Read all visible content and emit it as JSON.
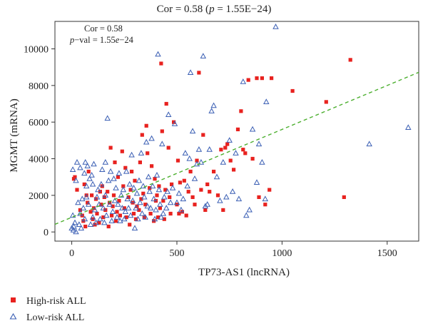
{
  "chart_data": {
    "type": "scatter",
    "title": "Cor = 0.58 (p = 1.55E−24)",
    "title_parts": {
      "prefix": "Cor = 0.58 (",
      "p": "p",
      "suffix": " = 1.55E−24)"
    },
    "annotation": {
      "cor": "Cor = 0.58",
      "pval_prefix": "p",
      "pval_mid": "−val = 1.55",
      "pval_e": "e",
      "pval_suffix": "−24"
    },
    "xlabel": "TP73-AS1 (lncRNA)",
    "ylabel": "MGMT (mRNA)",
    "xlim": [
      -80,
      1650
    ],
    "ylim": [
      -500,
      11500
    ],
    "xticks": [
      0,
      500,
      1000,
      1500
    ],
    "yticks": [
      0,
      2000,
      4000,
      6000,
      8000,
      10000
    ],
    "grid": false,
    "legend_position": "bottom-left",
    "trendline": {
      "style": "dashed",
      "color": "#4caf2f",
      "intercept": 800,
      "slope": 4.8
    },
    "series": [
      {
        "name": "High-risk ALL",
        "marker": "square",
        "color": "#e8221f",
        "points": [
          [
            10,
            2900
          ],
          [
            15,
            3000
          ],
          [
            25,
            2300
          ],
          [
            40,
            1200
          ],
          [
            50,
            900
          ],
          [
            55,
            600
          ],
          [
            60,
            2600
          ],
          [
            65,
            300
          ],
          [
            70,
            2000
          ],
          [
            75,
            1600
          ],
          [
            80,
            3300
          ],
          [
            90,
            1100
          ],
          [
            95,
            2000
          ],
          [
            100,
            700
          ],
          [
            105,
            1300
          ],
          [
            110,
            400
          ],
          [
            115,
            1800
          ],
          [
            120,
            1000
          ],
          [
            130,
            500
          ],
          [
            135,
            2200
          ],
          [
            140,
            1500
          ],
          [
            145,
            2500
          ],
          [
            150,
            800
          ],
          [
            155,
            1900
          ],
          [
            160,
            1200
          ],
          [
            170,
            2200
          ],
          [
            175,
            300
          ],
          [
            180,
            1600
          ],
          [
            185,
            4600
          ],
          [
            190,
            900
          ],
          [
            195,
            1400
          ],
          [
            200,
            2000
          ],
          [
            205,
            3800
          ],
          [
            210,
            600
          ],
          [
            215,
            1100
          ],
          [
            220,
            3000
          ],
          [
            225,
            1700
          ],
          [
            230,
            900
          ],
          [
            240,
            4400
          ],
          [
            245,
            2500
          ],
          [
            250,
            1300
          ],
          [
            255,
            3500
          ],
          [
            260,
            800
          ],
          [
            270,
            1900
          ],
          [
            275,
            400
          ],
          [
            280,
            2300
          ],
          [
            285,
            3300
          ],
          [
            290,
            1600
          ],
          [
            295,
            1000
          ],
          [
            300,
            2800
          ],
          [
            305,
            700
          ],
          [
            310,
            1400
          ],
          [
            320,
            1200
          ],
          [
            325,
            3800
          ],
          [
            330,
            1800
          ],
          [
            335,
            5300
          ],
          [
            340,
            2100
          ],
          [
            345,
            800
          ],
          [
            350,
            1500
          ],
          [
            355,
            5800
          ],
          [
            360,
            4300
          ],
          [
            370,
            2400
          ],
          [
            375,
            1000
          ],
          [
            380,
            3600
          ],
          [
            390,
            600
          ],
          [
            395,
            2900
          ],
          [
            400,
            1700
          ],
          [
            405,
            2000
          ],
          [
            410,
            800
          ],
          [
            415,
            2500
          ],
          [
            420,
            1300
          ],
          [
            425,
            9200
          ],
          [
            430,
            5500
          ],
          [
            435,
            1700
          ],
          [
            440,
            700
          ],
          [
            445,
            2300
          ],
          [
            450,
            7000
          ],
          [
            460,
            4600
          ],
          [
            465,
            1900
          ],
          [
            470,
            1000
          ],
          [
            475,
            2600
          ],
          [
            485,
            6000
          ],
          [
            500,
            1500
          ],
          [
            505,
            3900
          ],
          [
            510,
            1000
          ],
          [
            515,
            2700
          ],
          [
            525,
            1100
          ],
          [
            535,
            2800
          ],
          [
            545,
            900
          ],
          [
            555,
            2200
          ],
          [
            565,
            3300
          ],
          [
            575,
            1900
          ],
          [
            585,
            1500
          ],
          [
            595,
            3900
          ],
          [
            605,
            8700
          ],
          [
            615,
            2300
          ],
          [
            625,
            5300
          ],
          [
            635,
            1200
          ],
          [
            645,
            2600
          ],
          [
            655,
            2200
          ],
          [
            675,
            3300
          ],
          [
            695,
            2000
          ],
          [
            710,
            4500
          ],
          [
            720,
            1200
          ],
          [
            730,
            4600
          ],
          [
            740,
            4800
          ],
          [
            755,
            3900
          ],
          [
            770,
            3400
          ],
          [
            790,
            5600
          ],
          [
            805,
            6600
          ],
          [
            815,
            4500
          ],
          [
            825,
            4300
          ],
          [
            840,
            8300
          ],
          [
            860,
            4000
          ],
          [
            880,
            8400
          ],
          [
            890,
            1900
          ],
          [
            905,
            8400
          ],
          [
            920,
            1500
          ],
          [
            940,
            2300
          ],
          [
            950,
            8400
          ],
          [
            1050,
            7700
          ],
          [
            1210,
            7100
          ],
          [
            1295,
            1900
          ],
          [
            1325,
            9400
          ]
        ]
      },
      {
        "name": "Low-risk ALL",
        "marker": "triangle",
        "color": "#3b5fb4",
        "points": [
          [
            0,
            200
          ],
          [
            5,
            900
          ],
          [
            5,
            3400
          ],
          [
            8,
            100
          ],
          [
            10,
            300
          ],
          [
            15,
            500
          ],
          [
            20,
            2800
          ],
          [
            20,
            0
          ],
          [
            25,
            3800
          ],
          [
            30,
            1600
          ],
          [
            35,
            400
          ],
          [
            40,
            3500
          ],
          [
            40,
            1000
          ],
          [
            45,
            200
          ],
          [
            50,
            1800
          ],
          [
            55,
            1300
          ],
          [
            60,
            3200
          ],
          [
            62,
            700
          ],
          [
            65,
            3800
          ],
          [
            70,
            1900
          ],
          [
            70,
            2500
          ],
          [
            75,
            3600
          ],
          [
            80,
            1500
          ],
          [
            85,
            2900
          ],
          [
            90,
            400
          ],
          [
            95,
            3100
          ],
          [
            100,
            800
          ],
          [
            100,
            2600
          ],
          [
            105,
            3700
          ],
          [
            110,
            1200
          ],
          [
            115,
            500
          ],
          [
            120,
            1900
          ],
          [
            125,
            2300
          ],
          [
            130,
            1500
          ],
          [
            135,
            700
          ],
          [
            140,
            2600
          ],
          [
            145,
            3400
          ],
          [
            150,
            1300
          ],
          [
            155,
            500
          ],
          [
            160,
            2000
          ],
          [
            160,
            3800
          ],
          [
            165,
            900
          ],
          [
            170,
            6200
          ],
          [
            175,
            2800
          ],
          [
            180,
            1500
          ],
          [
            185,
            3300
          ],
          [
            190,
            600
          ],
          [
            195,
            1100
          ],
          [
            200,
            2900
          ],
          [
            205,
            1700
          ],
          [
            210,
            2400
          ],
          [
            215,
            800
          ],
          [
            220,
            1500
          ],
          [
            225,
            3200
          ],
          [
            230,
            600
          ],
          [
            235,
            2000
          ],
          [
            240,
            1300
          ],
          [
            245,
            2300
          ],
          [
            250,
            700
          ],
          [
            255,
            1100
          ],
          [
            260,
            3300
          ],
          [
            265,
            1800
          ],
          [
            270,
            1300
          ],
          [
            275,
            2600
          ],
          [
            280,
            900
          ],
          [
            285,
            4200
          ],
          [
            290,
            1700
          ],
          [
            295,
            2400
          ],
          [
            300,
            200
          ],
          [
            305,
            1300
          ],
          [
            310,
            2100
          ],
          [
            315,
            700
          ],
          [
            320,
            2800
          ],
          [
            325,
            1600
          ],
          [
            330,
            4300
          ],
          [
            335,
            1000
          ],
          [
            340,
            2500
          ],
          [
            345,
            1900
          ],
          [
            350,
            800
          ],
          [
            355,
            4900
          ],
          [
            360,
            1400
          ],
          [
            365,
            3000
          ],
          [
            370,
            2200
          ],
          [
            375,
            1300
          ],
          [
            380,
            5100
          ],
          [
            385,
            2500
          ],
          [
            390,
            1800
          ],
          [
            395,
            700
          ],
          [
            400,
            1200
          ],
          [
            405,
            3100
          ],
          [
            410,
            9700
          ],
          [
            415,
            2300
          ],
          [
            420,
            1500
          ],
          [
            425,
            800
          ],
          [
            430,
            4800
          ],
          [
            435,
            1000
          ],
          [
            440,
            1900
          ],
          [
            450,
            1300
          ],
          [
            455,
            2200
          ],
          [
            460,
            6400
          ],
          [
            470,
            1600
          ],
          [
            480,
            2400
          ],
          [
            490,
            5900
          ],
          [
            500,
            1600
          ],
          [
            510,
            2100
          ],
          [
            520,
            1200
          ],
          [
            530,
            1800
          ],
          [
            540,
            4300
          ],
          [
            550,
            2500
          ],
          [
            560,
            4000
          ],
          [
            565,
            8700
          ],
          [
            575,
            5500
          ],
          [
            585,
            2900
          ],
          [
            595,
            3700
          ],
          [
            605,
            4500
          ],
          [
            615,
            3800
          ],
          [
            625,
            9600
          ],
          [
            635,
            1400
          ],
          [
            645,
            1500
          ],
          [
            655,
            4500
          ],
          [
            665,
            6600
          ],
          [
            675,
            6900
          ],
          [
            690,
            3000
          ],
          [
            705,
            1700
          ],
          [
            720,
            3800
          ],
          [
            735,
            1900
          ],
          [
            750,
            5000
          ],
          [
            765,
            2200
          ],
          [
            780,
            4300
          ],
          [
            795,
            1800
          ],
          [
            815,
            8200
          ],
          [
            830,
            900
          ],
          [
            845,
            1200
          ],
          [
            860,
            5600
          ],
          [
            880,
            2700
          ],
          [
            890,
            4800
          ],
          [
            905,
            3800
          ],
          [
            920,
            1800
          ],
          [
            925,
            7100
          ],
          [
            970,
            11200
          ],
          [
            1415,
            4800
          ],
          [
            1600,
            5700
          ]
        ]
      }
    ]
  }
}
